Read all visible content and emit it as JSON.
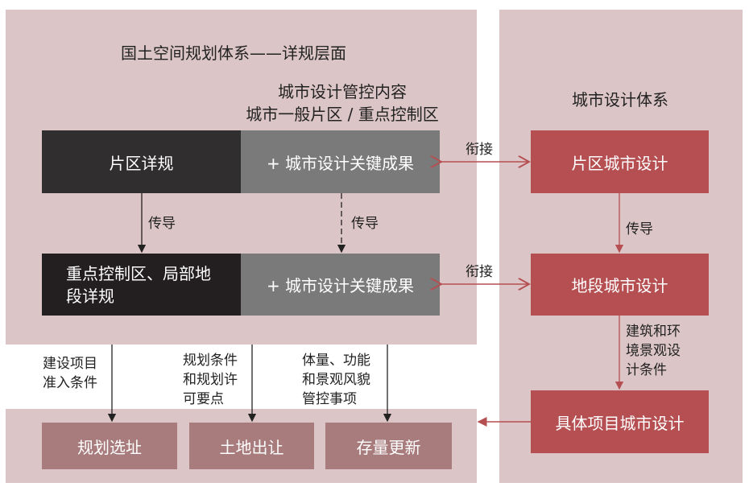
{
  "left_panel": {
    "title": "国土空间规划体系——详规层面",
    "subtitle_line1": "城市设计管控内容",
    "subtitle_line2": "城市一般片区 / 重点控制区",
    "row1": {
      "plan": "片区详规",
      "result": "+ 城市设计关键成果"
    },
    "row2": {
      "plan": "重点控制区、局部地段详规",
      "result": "+ 城市设计关键成果"
    },
    "transfer_label_1": "传导",
    "transfer_label_2": "传导"
  },
  "right_panel": {
    "title": "城市设计体系",
    "box1": "片区城市设计",
    "box2": "地段城市设计",
    "box3": "具体项目城市设计",
    "transfer_label": "传导",
    "conditions_label": "建筑和环境景观设计条件"
  },
  "links": {
    "link1": "衔接",
    "link2": "衔接"
  },
  "bottom": {
    "labels": [
      "建设项目准入条件",
      "规划条件和规划许可要点",
      "体量、功能和景观风貌管控事项"
    ],
    "boxes": [
      "规划选址",
      "土地出让",
      "存量更新"
    ]
  },
  "colors": {
    "panel": "#dcc5c7",
    "dark": "#312e30",
    "gray": "#7a7a7a",
    "red": "#b54f52",
    "mauve": "#a87b7c"
  }
}
